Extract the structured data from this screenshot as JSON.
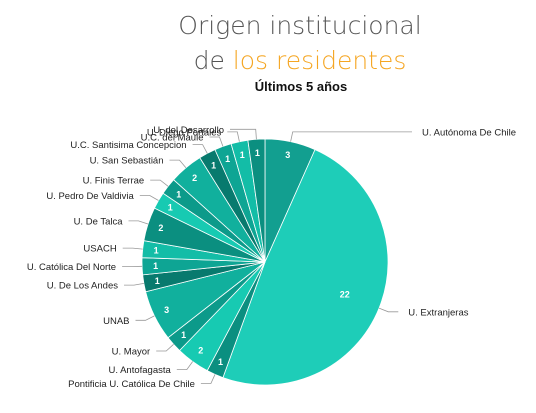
{
  "title": {
    "line1": "Origen institucional",
    "line2_prefix": "de",
    "line2_highlight": "los residentes",
    "subtitle": "Últimos 5 años"
  },
  "colors": {
    "title": "#555555",
    "highlight": "#f5a623",
    "subtitle": "#111111",
    "leader": "#999999",
    "slice_palette": [
      "#0ea594",
      "#13bda7",
      "#0b8f80",
      "#17cab2",
      "#0c9a8a",
      "#11b09d",
      "#087a6e"
    ],
    "big_slice": "#1ecdb8",
    "top_slice": "#129f90"
  },
  "chart_data": {
    "type": "pie",
    "title": "Origen institucional de los residentes",
    "subtitle": "Últimos 5 años",
    "slices": [
      {
        "label": "U. Autónoma De Chile",
        "value": 3
      },
      {
        "label": "U. Extranjeras",
        "value": 22
      },
      {
        "label": "Pontificia U. Católica De Chile",
        "value": 1
      },
      {
        "label": "U. Antofagasta",
        "value": 2
      },
      {
        "label": "U. Mayor",
        "value": 1
      },
      {
        "label": "UNAB",
        "value": 3
      },
      {
        "label": "U. De Los Andes",
        "value": 1
      },
      {
        "label": "U. Católica Del Norte",
        "value": 1
      },
      {
        "label": "USACH",
        "value": 1
      },
      {
        "label": "U. De Talca",
        "value": 2
      },
      {
        "label": "U. Pedro De Valdivia",
        "value": 1
      },
      {
        "label": "U. Finis Terrae",
        "value": 1
      },
      {
        "label": "U. San Sebastián",
        "value": 2
      },
      {
        "label": "U.C. Santisima Concepcion",
        "value": 1
      },
      {
        "label": "U.C. del Maule",
        "value": 1
      },
      {
        "label": "U. Diego Portales",
        "value": 1
      },
      {
        "label": "U. del Desarrollo",
        "value": 1
      }
    ]
  }
}
